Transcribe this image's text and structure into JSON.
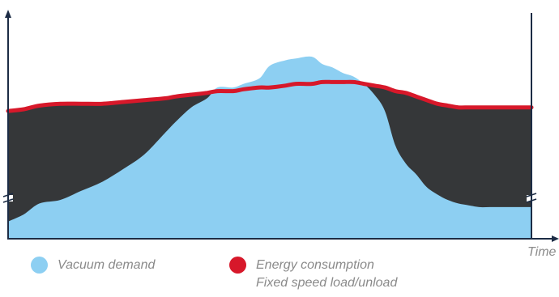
{
  "chart_data": {
    "type": "area",
    "xlabel": "Time",
    "ylabel": "",
    "title": "",
    "xlim": [
      0,
      100
    ],
    "ylim": [
      0,
      100
    ],
    "axis_break": "y",
    "x": [
      0,
      3,
      6,
      10,
      14,
      18,
      22,
      26,
      30,
      32,
      35,
      38,
      40,
      43,
      45,
      48,
      50,
      53,
      55,
      58,
      60,
      62,
      64,
      66,
      68,
      70,
      72,
      74,
      76,
      78,
      80,
      82,
      84,
      86,
      88,
      90,
      92,
      94,
      96,
      98,
      100
    ],
    "series": [
      {
        "name": "Vacuum demand",
        "color": "#8dcff2",
        "values": [
          9,
          13,
          19,
          21,
          26,
          31,
          38,
          46,
          58,
          64,
          72,
          77,
          83,
          83,
          85,
          88,
          95,
          98,
          99,
          100,
          96,
          94,
          91,
          89,
          85,
          79,
          70,
          51,
          41,
          35,
          28,
          24,
          21,
          19,
          18,
          17,
          17,
          17,
          17,
          17,
          17
        ]
      },
      {
        "name": "Energy consumption",
        "color": "#d7182a",
        "values": [
          70,
          71,
          73,
          74,
          74,
          74,
          75,
          76,
          77,
          78,
          79,
          80,
          81,
          81,
          82,
          83,
          83,
          84,
          85,
          85,
          86,
          86,
          86,
          86,
          85,
          84,
          83,
          81,
          80,
          78,
          76,
          74,
          73,
          72,
          72,
          72,
          72,
          72,
          72,
          72,
          72
        ]
      }
    ],
    "fill_between_color": "#353739",
    "legend": [
      {
        "label": "Vacuum demand",
        "color": "#8dcff2"
      },
      {
        "label": "Energy consumption",
        "sublabel": "Fixed speed load/unload",
        "color": "#d7182a"
      }
    ],
    "legend_placement": "bottom"
  }
}
